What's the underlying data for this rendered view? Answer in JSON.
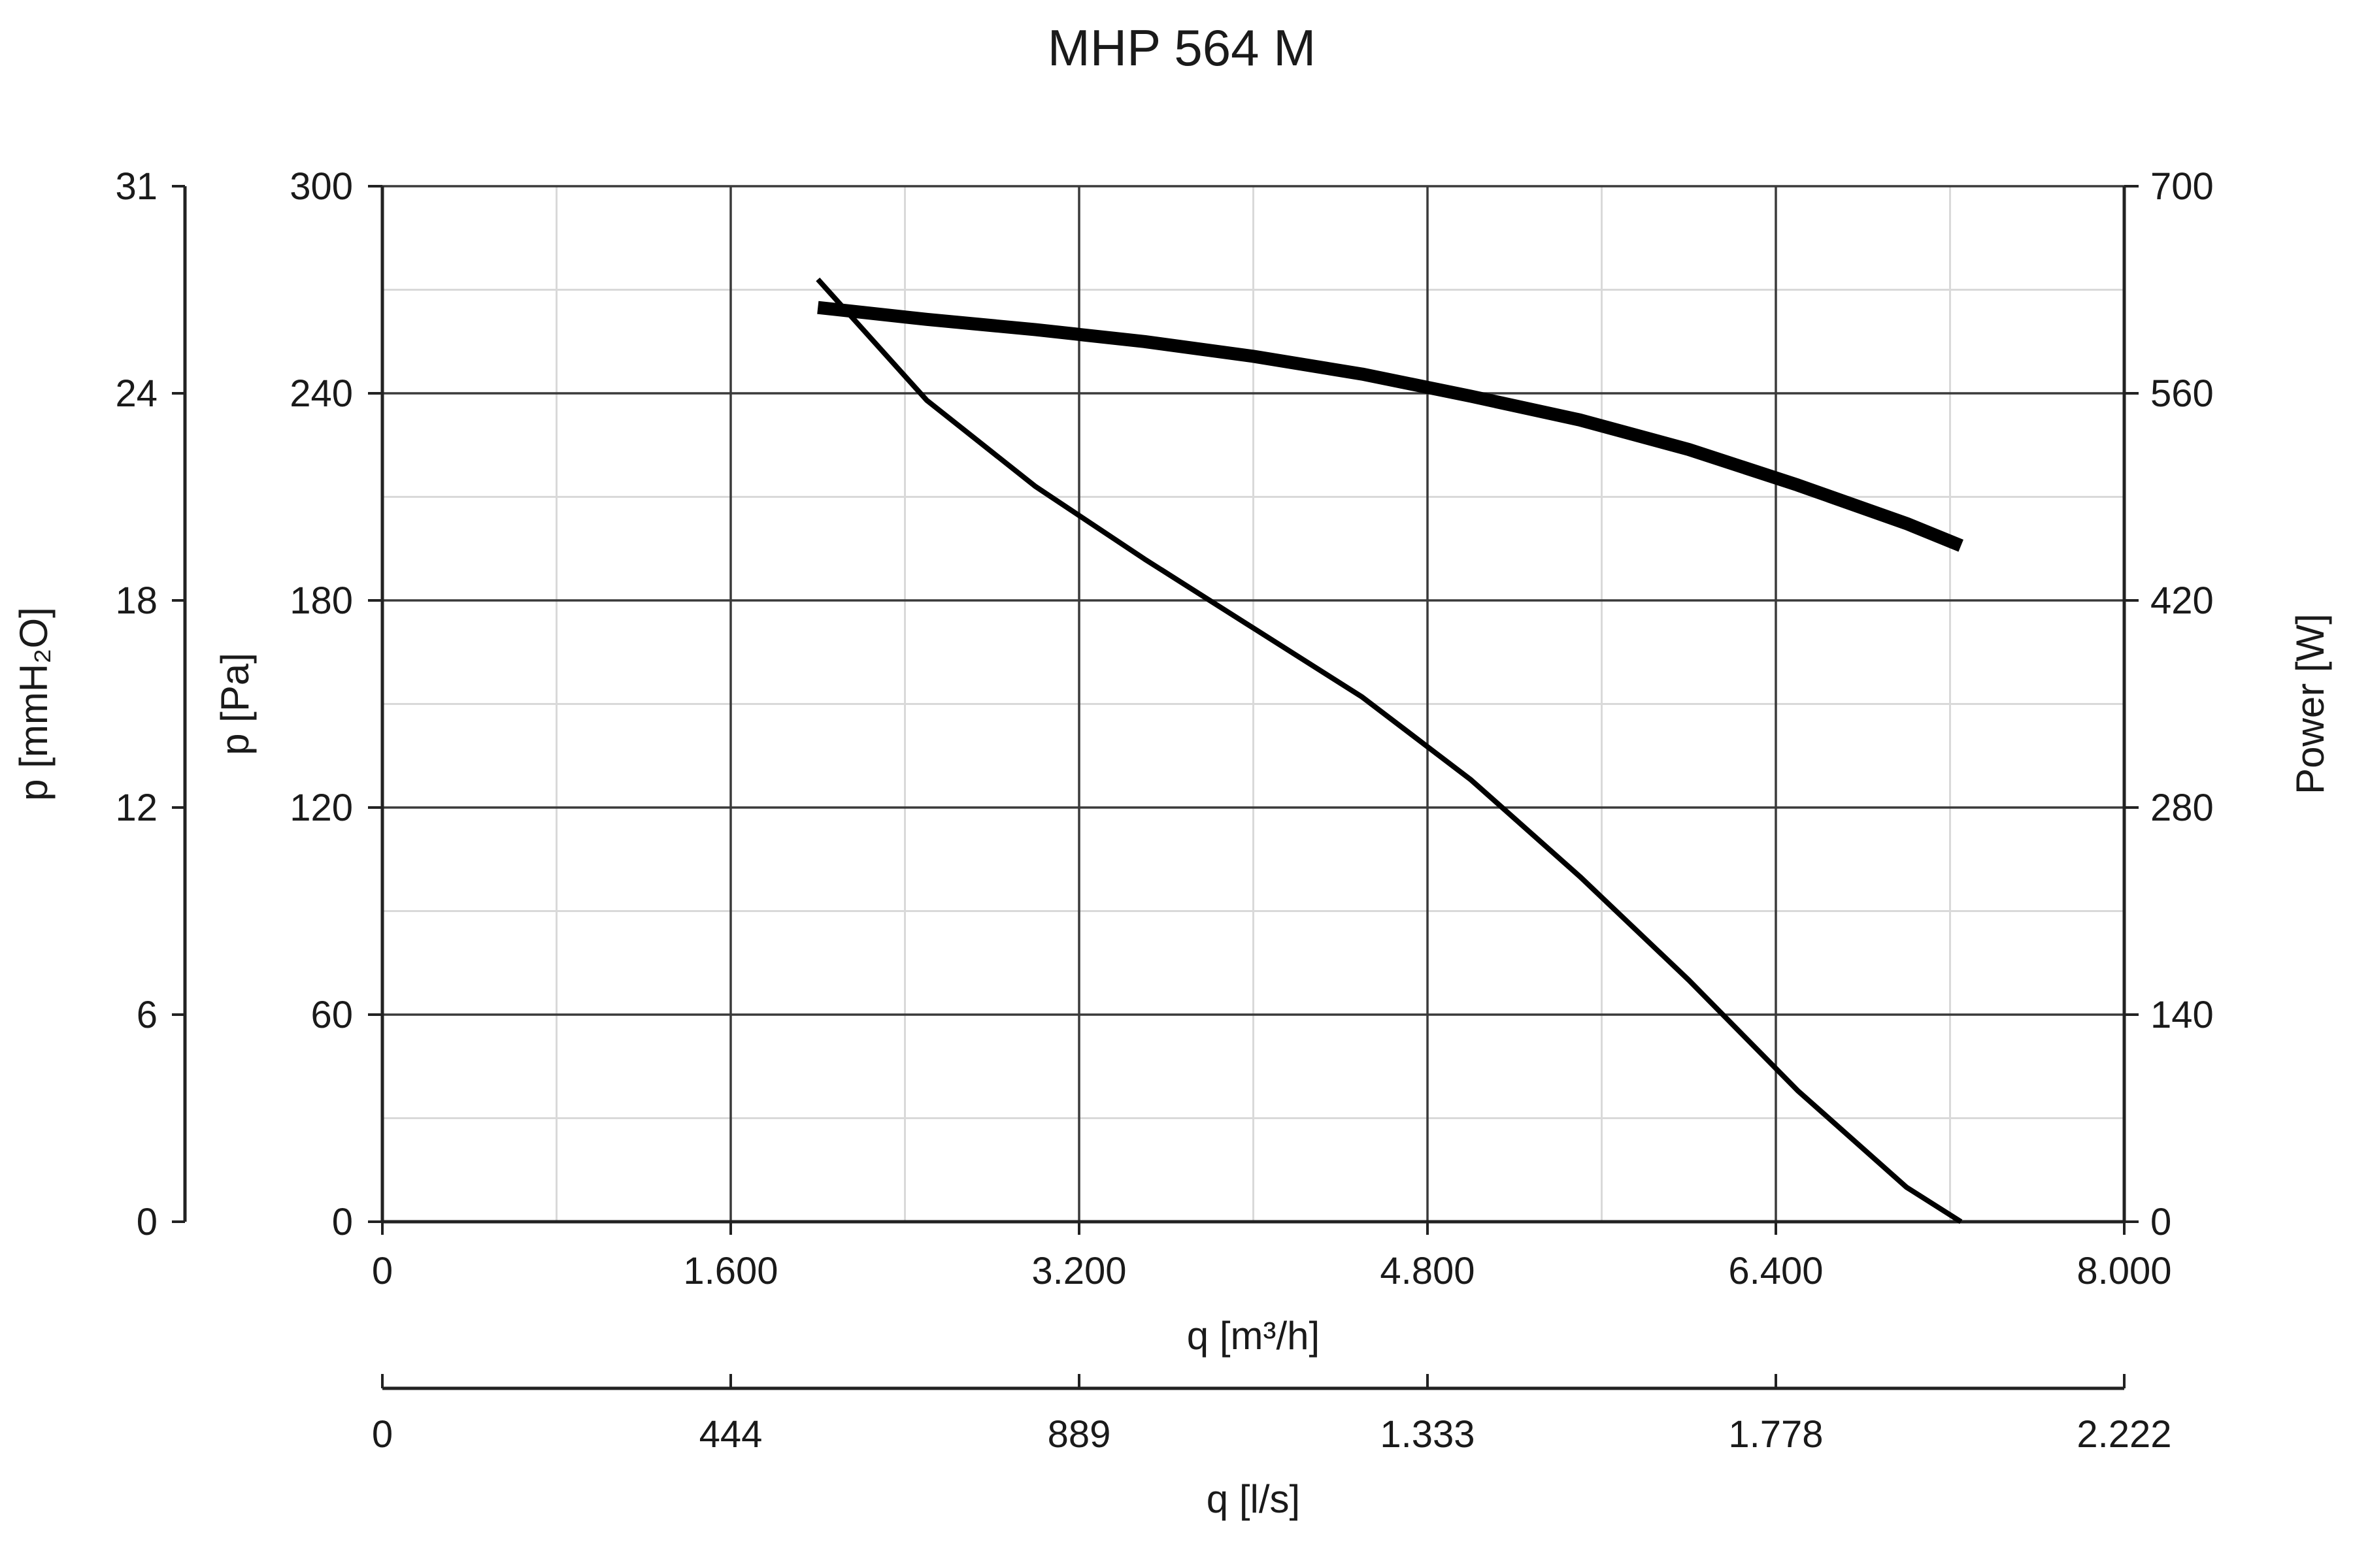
{
  "chart_data": {
    "type": "line",
    "title": "MHP 564 M",
    "grid": true,
    "axes": {
      "x_primary": {
        "label": "q [m³/h]",
        "range": [
          0,
          8000
        ],
        "ticks": [
          0,
          1600,
          3200,
          4800,
          6400,
          8000
        ],
        "tick_labels": [
          "0",
          "1.600",
          "3.200",
          "4.800",
          "6.400",
          "8.000"
        ]
      },
      "x_secondary": {
        "label": "q [l/s]",
        "range": [
          0,
          2222
        ],
        "tick_labels": [
          "0",
          "444",
          "889",
          "1.333",
          "1.778",
          "2.222"
        ]
      },
      "y_primary": {
        "label": "p [Pa]",
        "range": [
          0,
          300
        ],
        "ticks": [
          0,
          60,
          120,
          180,
          240,
          300
        ],
        "tick_labels": [
          "0",
          "60",
          "120",
          "180",
          "240",
          "300"
        ]
      },
      "y_outer": {
        "label": "p [mmH₂O]",
        "range": [
          0,
          31
        ],
        "tick_labels": [
          "0",
          "6",
          "12",
          "18",
          "24",
          "31"
        ]
      },
      "y_right": {
        "label": "Power [W]",
        "range": [
          0,
          700
        ],
        "tick_labels": [
          "0",
          "140",
          "280",
          "420",
          "560",
          "700"
        ]
      }
    },
    "series": [
      {
        "axis": "y_primary",
        "x": [
          2000,
          2500,
          3000,
          3500,
          4000,
          4500,
          5000,
          5500,
          6000,
          6500,
          7000,
          7250
        ],
        "y": [
          273,
          238,
          213,
          192,
          172,
          152,
          128,
          100,
          70,
          38,
          10,
          0
        ]
      },
      {
        "axis": "y_right",
        "x": [
          2000,
          2500,
          3000,
          3500,
          4000,
          4500,
          5000,
          5500,
          6000,
          6500,
          7000,
          7250
        ],
        "y": [
          618,
          610,
          603,
          595,
          585,
          573,
          558,
          542,
          522,
          498,
          472,
          457
        ]
      }
    ]
  }
}
